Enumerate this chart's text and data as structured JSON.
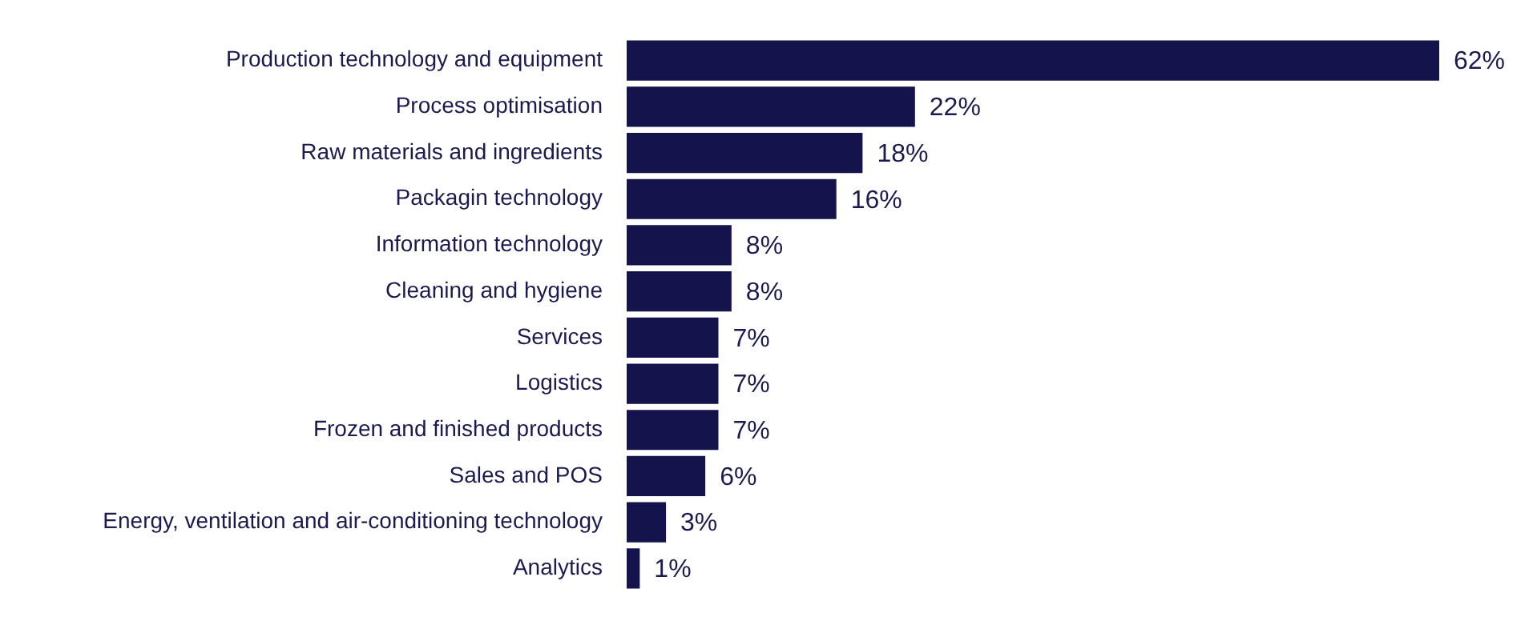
{
  "chart_data": {
    "type": "bar",
    "orientation": "horizontal",
    "categories": [
      "Production technology and equipment",
      "Process optimisation",
      "Raw materials and ingredients",
      "Packagin technology",
      "Information technology",
      "Cleaning and hygiene",
      "Services",
      "Logistics",
      "Frozen and finished products",
      "Sales and POS",
      "Energy, ventilation and air-conditioning technology",
      "Analytics"
    ],
    "values": [
      62,
      22,
      18,
      16,
      8,
      8,
      7,
      7,
      7,
      6,
      3,
      1
    ],
    "value_labels": [
      "62%",
      "22%",
      "18%",
      "16%",
      "8%",
      "8%",
      "7%",
      "7%",
      "7%",
      "6%",
      "3%",
      "1%"
    ],
    "color": "#14134b",
    "grid": false,
    "legend": false,
    "tick_labels": "y"
  }
}
